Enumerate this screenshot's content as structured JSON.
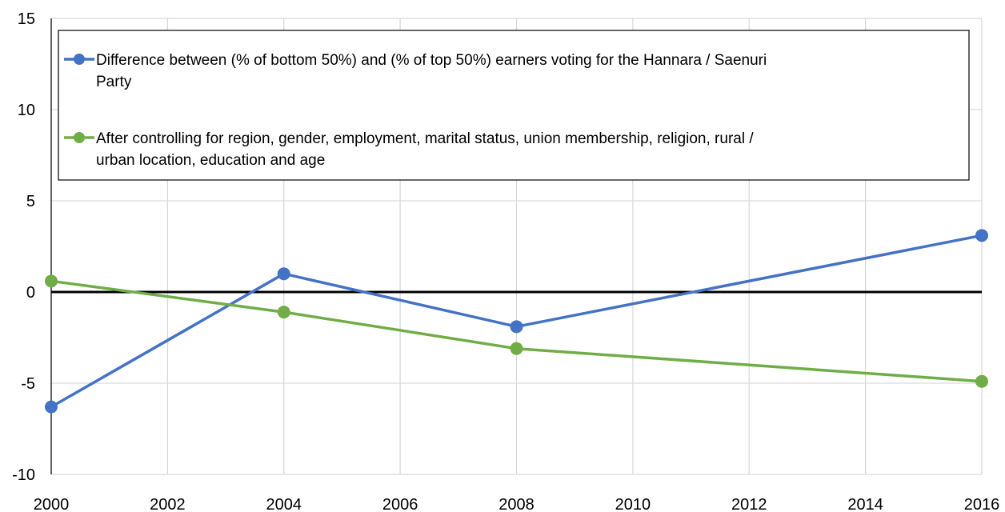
{
  "chart_data": {
    "type": "line",
    "title": "",
    "xlabel": "",
    "ylabel": "",
    "x": [
      2000,
      2004,
      2008,
      2016
    ],
    "xlim": [
      2000,
      2016
    ],
    "ylim": [
      -10,
      15
    ],
    "xticks": [
      "2000",
      "2002",
      "2004",
      "2006",
      "2008",
      "2010",
      "2012",
      "2014",
      "2016"
    ],
    "yticks": [
      "15",
      "10",
      "5",
      "0",
      "-5",
      "-10"
    ],
    "grid": true,
    "zero_line": true,
    "legend_position": "top",
    "series": [
      {
        "name": "Difference between (% of bottom 50%) and (% of top 50%) earners voting for the Hannara / Saenuri Party",
        "color": "#4472C4",
        "values": [
          -6.3,
          1.0,
          -1.9,
          3.1
        ]
      },
      {
        "name": "After controlling for region, gender, employment, marital status, union membership, religion, rural / urban location, education and age",
        "color": "#70AD47",
        "values": [
          0.6,
          -1.1,
          -3.1,
          -4.9
        ]
      }
    ],
    "legend_lines": [
      [
        "Difference between (% of bottom 50%) and (% of top 50%) earners voting for the Hannara / Saenuri",
        "Party"
      ],
      [
        "After controlling for region, gender, employment, marital status, union membership, religion, rural /",
        "urban location, education and age"
      ]
    ]
  }
}
